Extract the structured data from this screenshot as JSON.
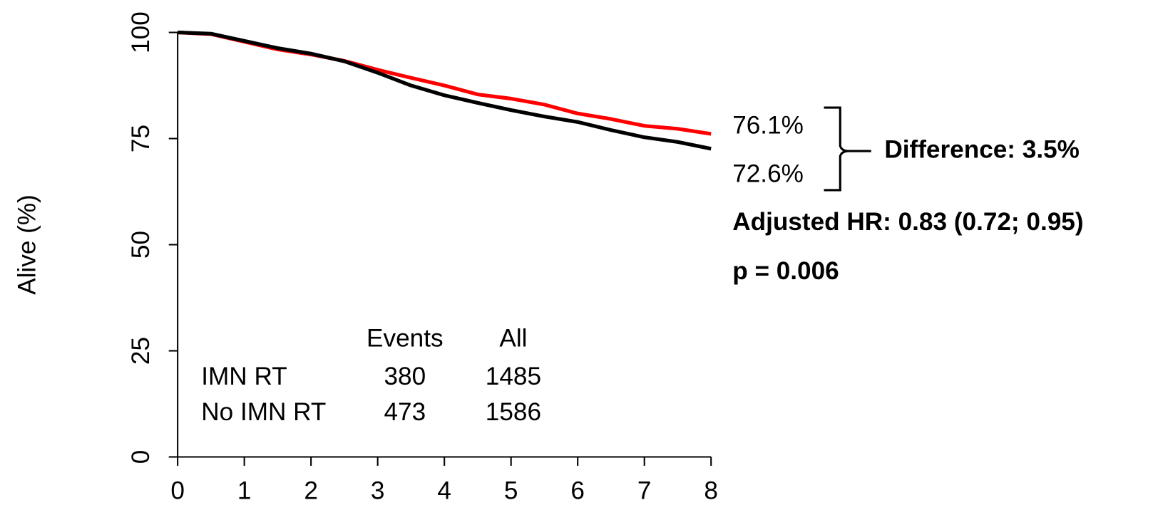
{
  "chart_data": {
    "type": "line",
    "y_label": "Alive (%)",
    "x": [
      0,
      0.5,
      1,
      1.5,
      2,
      2.5,
      3,
      3.5,
      4,
      4.5,
      5,
      5.5,
      6,
      6.5,
      7,
      7.5,
      8
    ],
    "xlim": [
      0,
      8
    ],
    "xticks": [
      0,
      1,
      2,
      3,
      4,
      5,
      6,
      7,
      8
    ],
    "ylim": [
      0,
      100
    ],
    "yticks": [
      0,
      25,
      50,
      75,
      100
    ],
    "series": [
      {
        "name": "IMN RT",
        "color": "#ff0000",
        "events": 380,
        "total": 1485,
        "values": [
          100,
          99.6,
          97.8,
          96,
          94.8,
          93.3,
          91.2,
          89.3,
          87.5,
          85.4,
          84.4,
          83,
          80.9,
          79.6,
          78,
          77.3,
          76.1
        ],
        "value_labels": [
          null,
          null,
          null,
          null,
          null,
          null,
          null,
          null,
          null,
          null,
          null,
          null,
          null,
          null,
          null,
          null,
          "76.1%"
        ]
      },
      {
        "name": "No IMN RT",
        "color": "#000000",
        "events": 473,
        "total": 1586,
        "values": [
          100,
          99.7,
          98,
          96.3,
          95,
          93.2,
          90.5,
          87.5,
          85.2,
          83.4,
          81.7,
          80.2,
          78.9,
          77,
          75.3,
          74.2,
          72.6
        ],
        "value_labels": [
          null,
          null,
          null,
          null,
          null,
          null,
          null,
          null,
          null,
          null,
          null,
          null,
          null,
          null,
          null,
          null,
          "72.6%"
        ]
      }
    ],
    "table_header": [
      "Events",
      "All"
    ],
    "annotations": [
      "Difference: 3.5%",
      "Adjusted HR: 0.83 (0.72; 0.95)",
      "p = 0.006"
    ]
  }
}
